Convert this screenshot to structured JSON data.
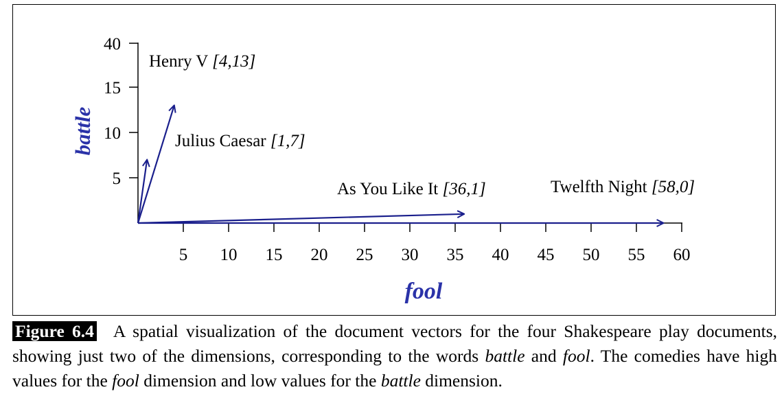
{
  "chart_data": {
    "type": "scatter",
    "title": "",
    "xlabel": "fool",
    "ylabel": "battle",
    "x_ticks": [
      "5",
      "10",
      "15",
      "20",
      "25",
      "30",
      "35",
      "40",
      "45",
      "50",
      "55",
      "60"
    ],
    "y_ticks": [
      "5",
      "10",
      "15",
      "40"
    ],
    "axis_break": {
      "axis": "y",
      "from": 15,
      "to": 40
    },
    "series": [
      {
        "name": "Henry V",
        "coords_label": "[4,13]",
        "x": 4,
        "y": 13
      },
      {
        "name": "Julius Caesar",
        "coords_label": "[1,7]",
        "x": 1,
        "y": 7
      },
      {
        "name": "As You Like It",
        "coords_label": "[36,1]",
        "x": 36,
        "y": 1
      },
      {
        "name": "Twelfth Night",
        "coords_label": "[58,0]",
        "x": 58,
        "y": 0
      }
    ],
    "arrow_color": "#1a1f8c",
    "axis_label_color": "#2a32a8"
  },
  "caption": {
    "label": "Figure 6.4",
    "t1": "A spatial visualization of the document vectors for the four Shakespeare play documents, showing just two of the dimensions, corresponding to the words ",
    "w1": "battle",
    "t2": " and ",
    "w2": "fool",
    "t3": ". The comedies have high values for the ",
    "w3": "fool",
    "t4": " dimension and low values for the ",
    "w4": "battle",
    "t5": " dimension."
  }
}
